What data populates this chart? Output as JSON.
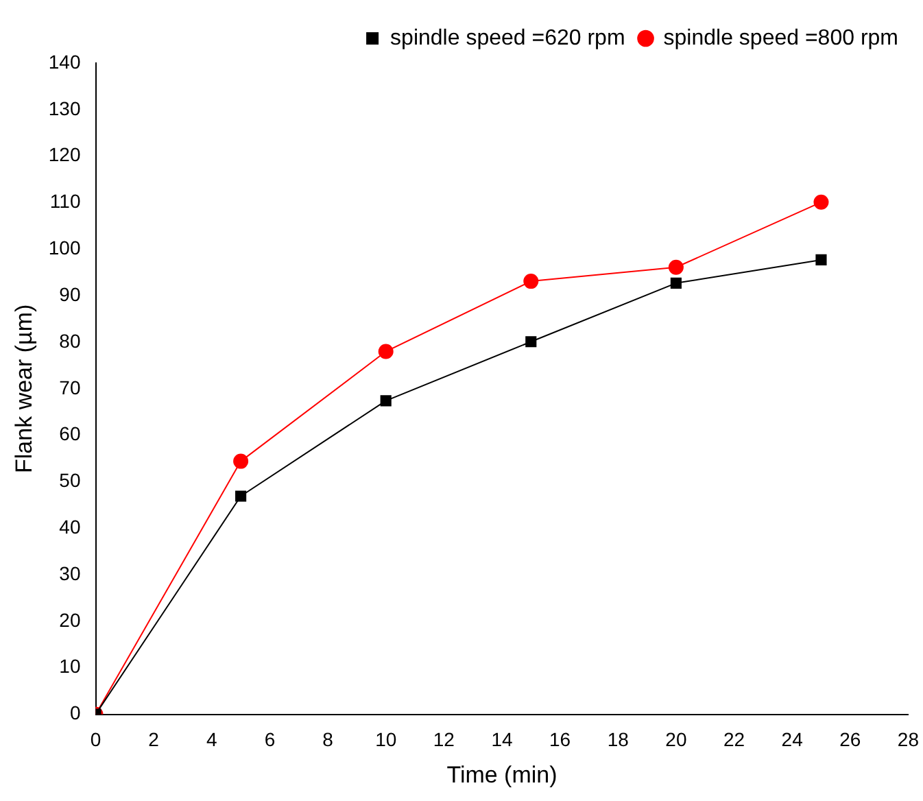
{
  "chart_data": {
    "type": "line",
    "xlabel": "Time (min)",
    "ylabel": "Flank wear (µm)",
    "x": [
      0,
      5,
      10,
      15,
      20,
      25
    ],
    "series": [
      {
        "name": "spindle speed =620 rpm",
        "color": "#000000",
        "marker": "square",
        "values": [
          0,
          46.9,
          67.4,
          80.1,
          92.7,
          97.7
        ]
      },
      {
        "name": "spindle speed =800 rpm",
        "color": "#ff0000",
        "marker": "circle",
        "values": [
          0,
          54.4,
          78,
          93.1,
          96.1,
          110.1
        ]
      }
    ],
    "xlim": [
      0,
      28
    ],
    "xticks": [
      0,
      2,
      4,
      6,
      8,
      10,
      12,
      14,
      16,
      18,
      20,
      22,
      24,
      26,
      28
    ],
    "ylim": [
      0,
      140
    ],
    "yticks": [
      0,
      10,
      20,
      30,
      40,
      50,
      60,
      70,
      80,
      90,
      100,
      110,
      120,
      130,
      140
    ],
    "grid": false,
    "legend": "top right",
    "line_style": "solid"
  }
}
